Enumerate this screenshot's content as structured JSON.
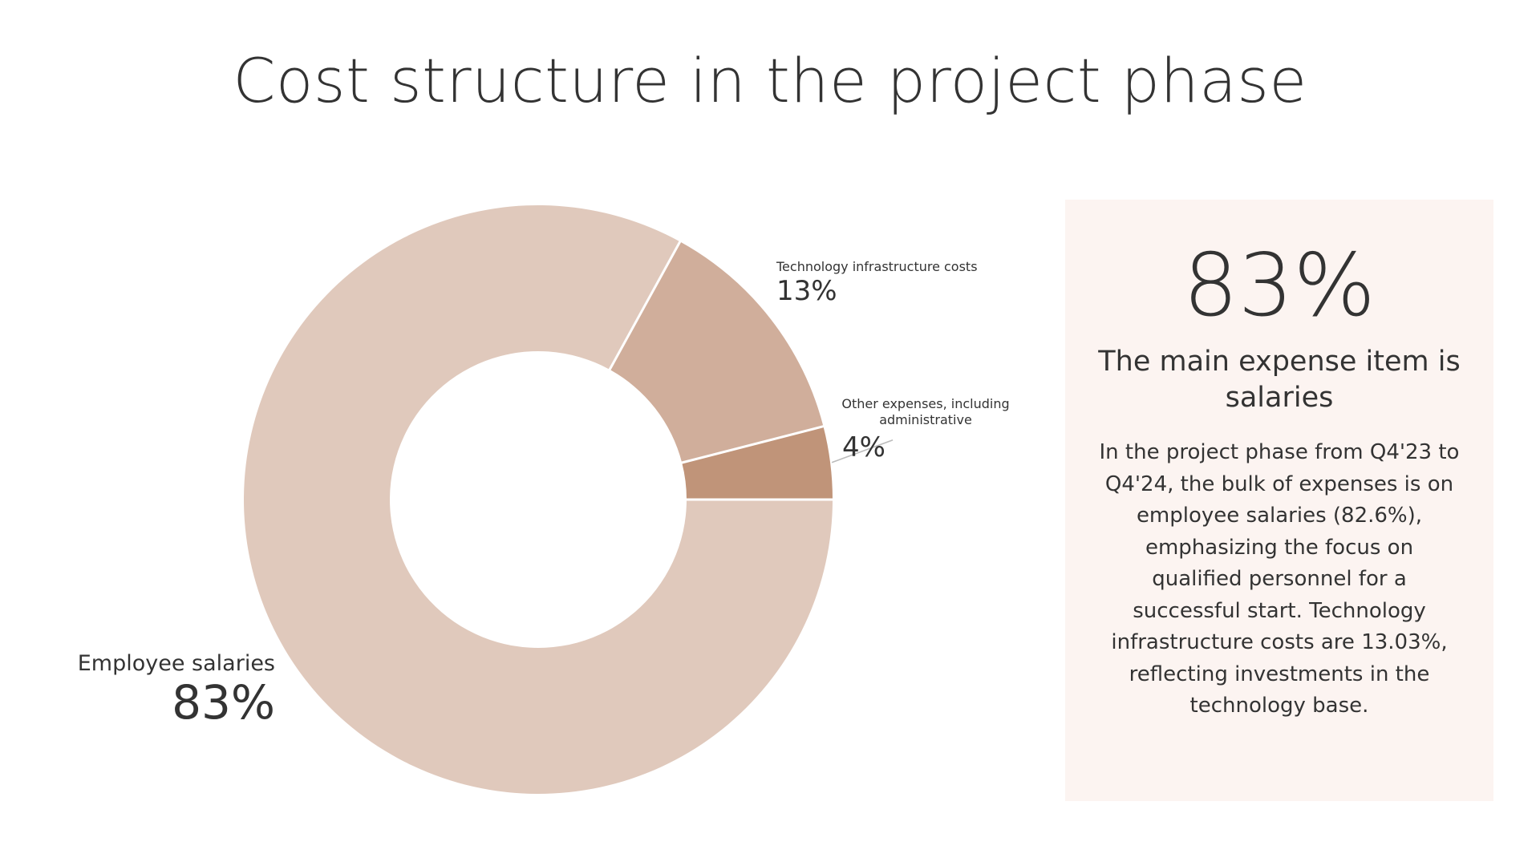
{
  "title": "Cost structure in the project phase",
  "chart_data": {
    "type": "pie",
    "title": "Cost structure in the project phase",
    "donut": true,
    "categories": [
      "Employee salaries",
      "Technology infrastructure costs",
      "Other expenses, including administrative"
    ],
    "values": [
      83,
      13,
      4
    ],
    "labels": [
      "83%",
      "13%",
      "4%"
    ],
    "colors": [
      "#e0c9bc",
      "#d0ae9b",
      "#c09479"
    ]
  },
  "labels": {
    "salaries_name": "Employee salaries",
    "salaries_pct": "83%",
    "tech_name": "Technology infrastructure costs",
    "tech_pct": "13%",
    "other_name": "Other expenses, including administrative",
    "other_pct": "4%"
  },
  "panel": {
    "big_number": "83%",
    "headline": "The main expense item is salaries",
    "body": "In the project phase from Q4'23 to Q4'24, the bulk of expenses is on employee salaries (82.6%), emphasizing the focus on qualified personnel for a successful start. Technology infrastructure costs are 13.03%, reflecting investments in the technology base."
  },
  "colors": {
    "text": "#333333",
    "panel_background": "#fcf4f1",
    "separator": "#ffffff",
    "leader_line": "#bbbbbb"
  }
}
